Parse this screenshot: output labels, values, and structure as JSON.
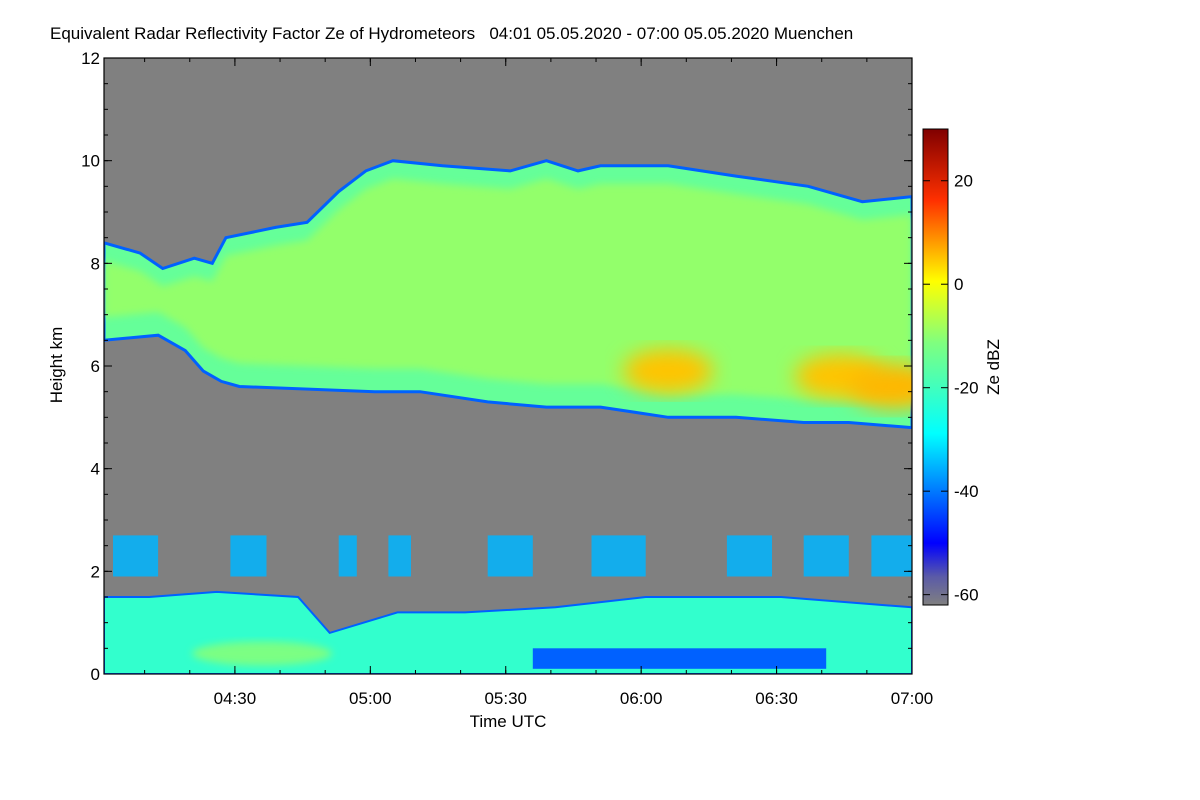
{
  "chart_data": {
    "type": "heatmap",
    "title": "Equivalent Radar Reflectivity Factor Ze of Hydrometeors   04:01 05.05.2020 - 07:00 05.05.2020 Muenchen",
    "xlabel": "Time UTC",
    "ylabel": "Height km",
    "x_range": [
      "04:01",
      "07:00"
    ],
    "x_ticks": [
      "04:30",
      "05:00",
      "05:30",
      "06:00",
      "06:30",
      "07:00"
    ],
    "ylim": [
      0,
      12
    ],
    "y_ticks": [
      0,
      2,
      4,
      6,
      8,
      10,
      12
    ],
    "background_color": "#808080",
    "colorbar": {
      "label": "Ze dBZ",
      "range": [
        -62,
        30
      ],
      "ticks": [
        20,
        0,
        -20,
        -40,
        -60
      ],
      "colormap": "jet"
    },
    "regions": [
      {
        "name": "upper cloud",
        "typical_ze_dbz": -15,
        "top_km": [
          [
            0,
            8.4
          ],
          [
            8,
            8.2
          ],
          [
            13,
            7.9
          ],
          [
            20,
            8.1
          ],
          [
            24,
            8.0
          ],
          [
            27,
            8.5
          ],
          [
            38,
            8.7
          ],
          [
            45,
            8.8
          ],
          [
            52,
            9.4
          ],
          [
            58,
            9.8
          ],
          [
            64,
            10.0
          ],
          [
            75,
            9.9
          ],
          [
            90,
            9.8
          ],
          [
            98,
            10.0
          ],
          [
            105,
            9.8
          ],
          [
            110,
            9.9
          ],
          [
            125,
            9.9
          ],
          [
            140,
            9.7
          ],
          [
            156,
            9.5
          ],
          [
            168,
            9.2
          ],
          [
            179,
            9.3
          ]
        ],
        "base_km": [
          [
            0,
            6.5
          ],
          [
            12,
            6.6
          ],
          [
            18,
            6.3
          ],
          [
            22,
            5.9
          ],
          [
            26,
            5.7
          ],
          [
            30,
            5.6
          ],
          [
            60,
            5.5
          ],
          [
            70,
            5.5
          ],
          [
            85,
            5.3
          ],
          [
            98,
            5.2
          ],
          [
            110,
            5.2
          ],
          [
            125,
            5.0
          ],
          [
            140,
            5.0
          ],
          [
            155,
            4.9
          ],
          [
            165,
            4.9
          ],
          [
            179,
            4.8
          ]
        ],
        "core_maxima": [
          {
            "minute": 125,
            "height_km": 5.9,
            "ze_dbz": 5
          },
          {
            "minute": 163,
            "height_km": 5.8,
            "ze_dbz": 5
          },
          {
            "minute": 175,
            "height_km": 5.6,
            "ze_dbz": 6
          }
        ]
      },
      {
        "name": "mid-level echoes",
        "typical_ze_dbz": -35,
        "height_km": [
          1.9,
          2.7
        ]
      },
      {
        "name": "boundary layer",
        "typical_ze_dbz": -22,
        "top_km": [
          [
            0,
            1.5
          ],
          [
            10,
            1.5
          ],
          [
            25,
            1.6
          ],
          [
            43,
            1.5
          ],
          [
            50,
            0.8
          ],
          [
            65,
            1.2
          ],
          [
            80,
            1.2
          ],
          [
            100,
            1.3
          ],
          [
            120,
            1.5
          ],
          [
            150,
            1.5
          ],
          [
            179,
            1.3
          ]
        ],
        "core_maxima": [
          {
            "minute": 35,
            "height_km": 0.4,
            "ze_dbz": -12
          }
        ]
      }
    ]
  }
}
